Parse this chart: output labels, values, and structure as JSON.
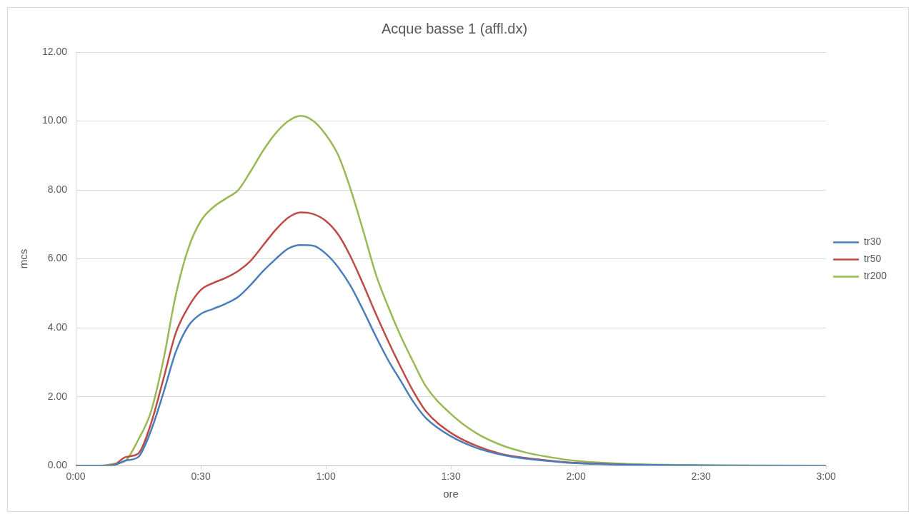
{
  "chart_data": {
    "type": "line",
    "title": "Acque basse 1 (affl.dx)",
    "xlabel": "ore",
    "ylabel": "mcs",
    "x": [
      0,
      0.1,
      0.15,
      0.2,
      0.25,
      0.3,
      0.35,
      0.4,
      0.45,
      0.5,
      0.55,
      0.6,
      0.65,
      0.7,
      0.75,
      0.8,
      0.85,
      0.9,
      0.95,
      1.0,
      1.05,
      1.1,
      1.15,
      1.2,
      1.25,
      1.3,
      1.35,
      1.4,
      1.5,
      1.6,
      1.7,
      1.8,
      1.9,
      2.0,
      2.2,
      2.4,
      2.6,
      3.0
    ],
    "series": [
      {
        "name": "tr30",
        "color": "#4a7ebb",
        "values": [
          0,
          0,
          0.01,
          0.15,
          0.25,
          1.0,
          2.1,
          3.3,
          4.05,
          4.4,
          4.55,
          4.7,
          4.9,
          5.25,
          5.65,
          6.0,
          6.3,
          6.4,
          6.38,
          6.15,
          5.75,
          5.2,
          4.5,
          3.75,
          3.05,
          2.45,
          1.85,
          1.38,
          0.85,
          0.52,
          0.32,
          0.2,
          0.13,
          0.07,
          0.03,
          0.01,
          0,
          0
        ]
      },
      {
        "name": "tr50",
        "color": "#be4b48",
        "values": [
          0,
          0,
          0.02,
          0.25,
          0.35,
          1.2,
          2.5,
          3.85,
          4.6,
          5.1,
          5.3,
          5.45,
          5.65,
          5.95,
          6.4,
          6.85,
          7.2,
          7.35,
          7.3,
          7.1,
          6.7,
          6.05,
          5.25,
          4.4,
          3.6,
          2.85,
          2.15,
          1.58,
          0.95,
          0.58,
          0.34,
          0.22,
          0.14,
          0.08,
          0.03,
          null,
          null,
          null
        ]
      },
      {
        "name": "tr200",
        "color": "#98b954",
        "values": [
          0,
          0,
          0.05,
          0.15,
          0.75,
          1.55,
          3.05,
          4.95,
          6.3,
          7.1,
          7.5,
          7.75,
          8.0,
          8.55,
          9.15,
          9.65,
          10.0,
          10.15,
          10.0,
          9.6,
          9.0,
          8.0,
          6.8,
          5.55,
          4.6,
          3.75,
          3.0,
          2.3,
          1.5,
          0.95,
          0.6,
          0.38,
          0.24,
          0.14,
          0.05,
          0.02,
          0.01,
          0
        ]
      }
    ],
    "xlim": [
      0,
      3
    ],
    "xticks": [
      {
        "value": 0,
        "label": "0:00"
      },
      {
        "value": 0.5,
        "label": "0:30"
      },
      {
        "value": 1,
        "label": "1:00"
      },
      {
        "value": 1.5,
        "label": "1:30"
      },
      {
        "value": 2,
        "label": "2:00"
      },
      {
        "value": 2.5,
        "label": "2:30"
      },
      {
        "value": 3,
        "label": "3:00"
      }
    ],
    "ylim": [
      0,
      12
    ],
    "yticks": [
      {
        "value": 0,
        "label": "0.00"
      },
      {
        "value": 2,
        "label": "2.00"
      },
      {
        "value": 4,
        "label": "4.00"
      },
      {
        "value": 6,
        "label": "6.00"
      },
      {
        "value": 8,
        "label": "8.00"
      },
      {
        "value": 10,
        "label": "10.00"
      },
      {
        "value": 12,
        "label": "12.00"
      }
    ],
    "grid": "y",
    "legend": "right",
    "marker": "none",
    "line_style": "solid"
  }
}
